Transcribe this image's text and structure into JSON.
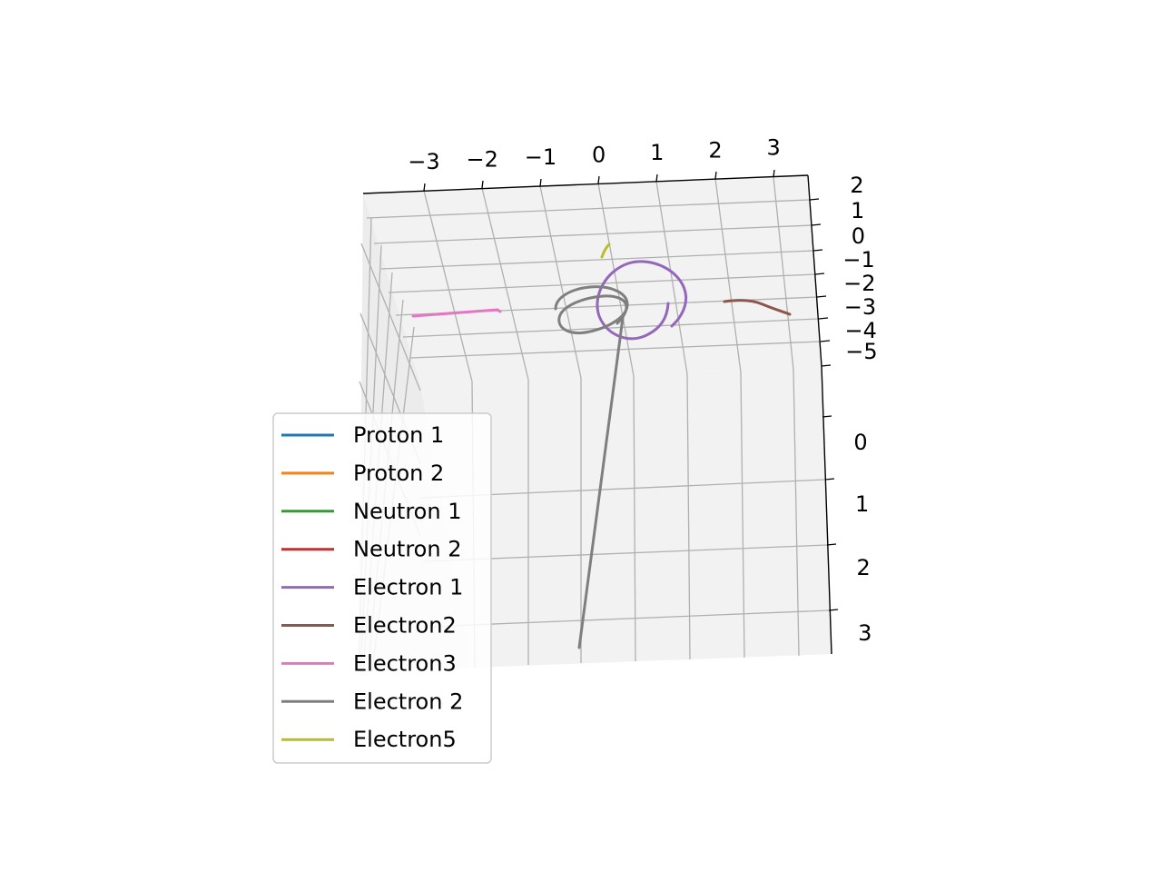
{
  "chart_data": {
    "type": "line",
    "projection": "3d",
    "title": "",
    "x_ticks": [
      "−3",
      "−2",
      "−1",
      "0",
      "1",
      "2",
      "3"
    ],
    "y_ticks": [
      "2",
      "1",
      "0",
      "−1",
      "−2",
      "−3",
      "−4",
      "−5"
    ],
    "z_ticks": [
      "0",
      "1",
      "2",
      "3"
    ],
    "legend_placement": "lower-left",
    "grid": true,
    "series": [
      {
        "name": "Proton 1",
        "color": "#1f77b4"
      },
      {
        "name": "Proton 2",
        "color": "#ff7f0e"
      },
      {
        "name": "Neutron 1",
        "color": "#2ca02c"
      },
      {
        "name": "Neutron 2",
        "color": "#d62728"
      },
      {
        "name": "Electron 1",
        "color": "#9467bd"
      },
      {
        "name": "Electron2",
        "color": "#8c564b"
      },
      {
        "name": "Electron3",
        "color": "#e377c2"
      },
      {
        "name": "Electron 2",
        "color": "#7f7f7f"
      },
      {
        "name": "Electron5",
        "color": "#bcbd22"
      }
    ]
  }
}
